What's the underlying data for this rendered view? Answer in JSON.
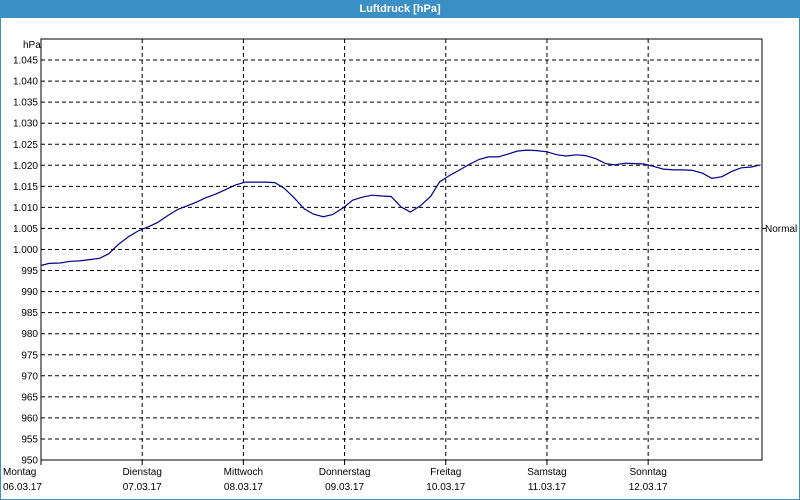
{
  "window": {
    "title": "Luftdruck [hPa]"
  },
  "chart_data": {
    "type": "line",
    "title": "Luftdruck [hPa]",
    "ylabel": "hPa",
    "ylim": [
      950,
      1050
    ],
    "y_ticks": [
      "950",
      "955",
      "960",
      "965",
      "970",
      "975",
      "980",
      "985",
      "990",
      "995",
      "1.000",
      "1.005",
      "1.010",
      "1.015",
      "1.020",
      "1.025",
      "1.030",
      "1.035",
      "1.040",
      "1.045"
    ],
    "x_range": [
      0,
      7.125
    ],
    "x_ticks": [
      {
        "day": "Montag",
        "date": "06.03.17"
      },
      {
        "day": "Dienstag",
        "date": "07.03.17"
      },
      {
        "day": "Mittwoch",
        "date": "08.03.17"
      },
      {
        "day": "Donnerstag",
        "date": "09.03.17"
      },
      {
        "day": "Freitag",
        "date": "10.03.17"
      },
      {
        "day": "Samstag",
        "date": "11.03.17"
      },
      {
        "day": "Sonntag",
        "date": "12.03.17"
      }
    ],
    "reference_line": {
      "label": "Normal",
      "value": 1005
    },
    "grid": true,
    "series": [
      {
        "color": "#00008b",
        "x": [
          0,
          0.08,
          0.19,
          0.29,
          0.38,
          0.48,
          0.58,
          0.67,
          0.77,
          0.87,
          0.96,
          1.06,
          1.15,
          1.25,
          1.35,
          1.44,
          1.54,
          1.63,
          1.73,
          1.83,
          1.92,
          2.02,
          2.12,
          2.21,
          2.31,
          2.4,
          2.5,
          2.6,
          2.69,
          2.79,
          2.88,
          2.98,
          3.08,
          3.17,
          3.27,
          3.37,
          3.46,
          3.56,
          3.65,
          3.75,
          3.85,
          3.94,
          4.04,
          4.13,
          4.23,
          4.33,
          4.42,
          4.52,
          4.62,
          4.71,
          4.81,
          4.9,
          5,
          5.1,
          5.19,
          5.29,
          5.38,
          5.48,
          5.58,
          5.67,
          5.77,
          5.87,
          5.96,
          6.06,
          6.15,
          6.25,
          6.35,
          6.44,
          6.54,
          6.63,
          6.73,
          6.83,
          6.92,
          7.02,
          7.11
        ],
        "values": [
          996.2,
          996.7,
          996.8,
          997.2,
          997.3,
          997.6,
          997.9,
          999,
          1001.3,
          1003.1,
          1004.4,
          1005.4,
          1006.4,
          1008,
          1009.5,
          1010.3,
          1011.3,
          1012.3,
          1013.2,
          1014.3,
          1015.3,
          1016,
          1016,
          1016,
          1015.9,
          1014.6,
          1012.3,
          1009.7,
          1008.4,
          1007.8,
          1008.3,
          1009.8,
          1011.7,
          1012.4,
          1012.9,
          1012.7,
          1012.6,
          1010.1,
          1008.9,
          1010.4,
          1012.6,
          1016.1,
          1017.6,
          1018.8,
          1020.2,
          1021.4,
          1022,
          1022,
          1022.7,
          1023.4,
          1023.6,
          1023.5,
          1023.2,
          1022.5,
          1022.2,
          1022.5,
          1022.3,
          1021.6,
          1020.4,
          1020.1,
          1020.5,
          1020.4,
          1020.3,
          1019.7,
          1019.1,
          1018.9,
          1018.9,
          1018.8,
          1018.1,
          1016.9,
          1017.3,
          1018.6,
          1019.4,
          1019.6,
          1020.1
        ]
      }
    ]
  }
}
